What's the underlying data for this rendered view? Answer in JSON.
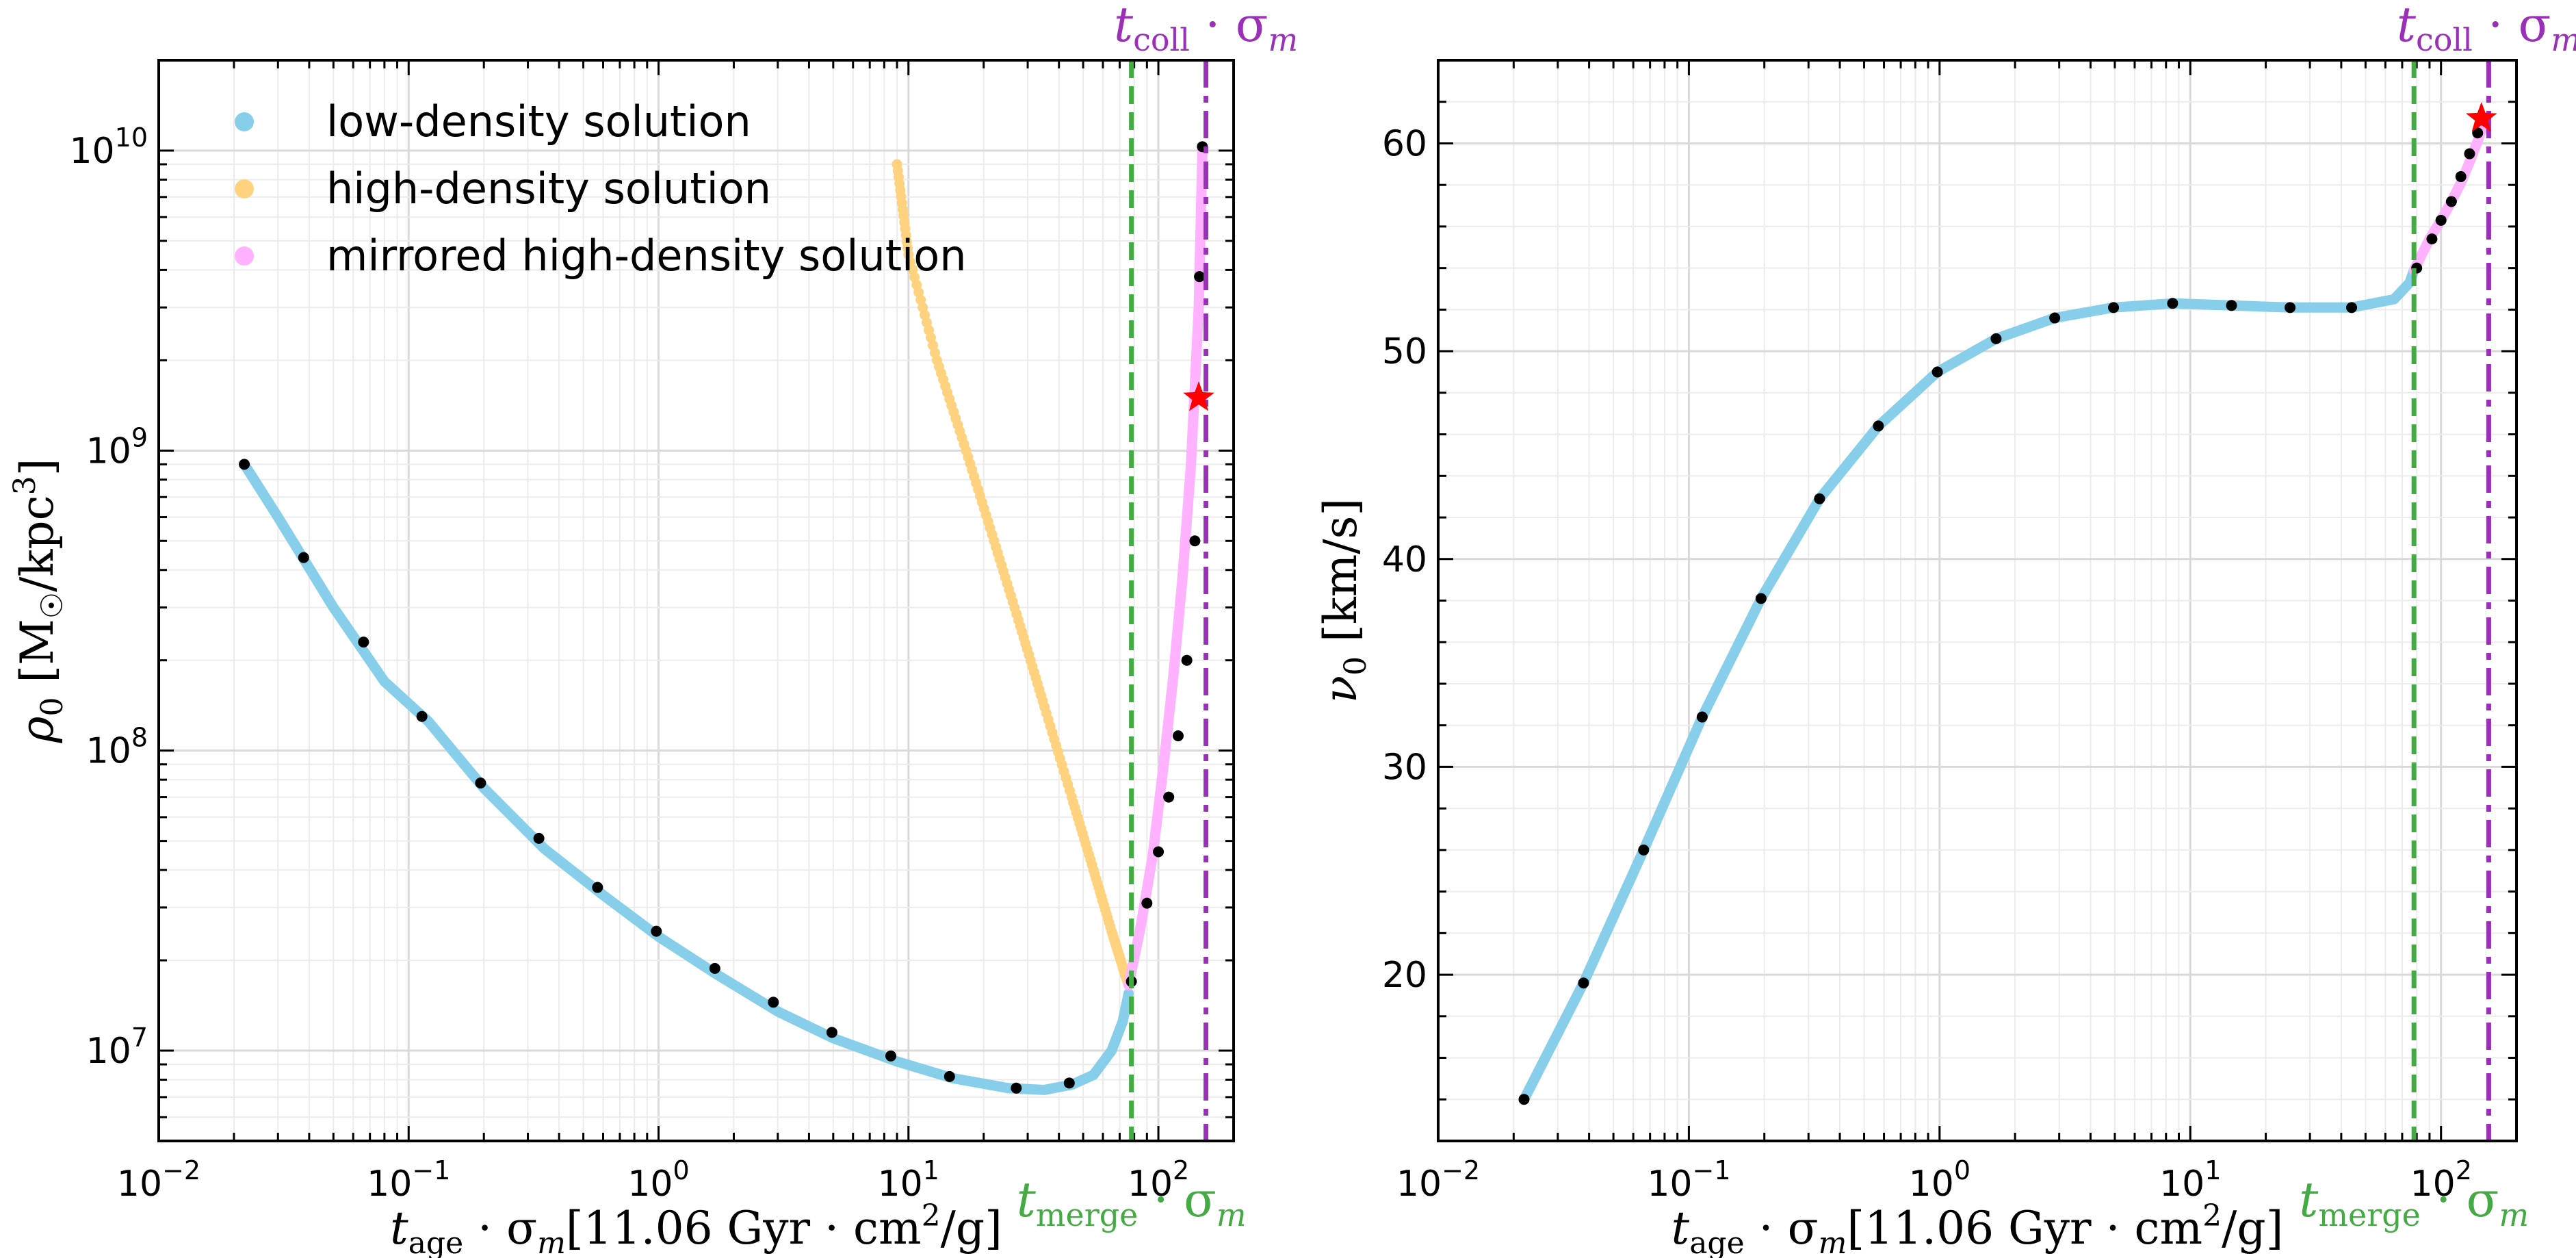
{
  "colors": {
    "low": "#87ceeb",
    "high": "#ffd27f",
    "mirrored": "#ffb2ff",
    "merge": "#44aa44",
    "coll": "#9a2fb8",
    "star": "#ff0000",
    "marker": "#000000"
  },
  "chart_data": [
    {
      "type": "line",
      "yscale": "log",
      "xscale": "log",
      "xlabel": "t_age · σ_m [11.06 Gyr · cm²/g]",
      "ylabel": "ρ₀ [M☉/kpc³]",
      "xlim": [
        0.01,
        200
      ],
      "ylim": [
        5000000,
        20000000000
      ],
      "xticks": [
        0.01,
        0.1,
        1,
        10,
        100
      ],
      "xtick_labels": [
        {
          "b": "10",
          "e": "−2"
        },
        {
          "b": "10",
          "e": "−1"
        },
        {
          "b": "10",
          "e": "0"
        },
        {
          "b": "10",
          "e": "1"
        },
        {
          "b": "10",
          "e": "2"
        }
      ],
      "yticks": [
        10000000,
        100000000,
        1000000000,
        10000000000
      ],
      "ytick_labels": [
        {
          "b": "10",
          "e": "7"
        },
        {
          "b": "10",
          "e": "8"
        },
        {
          "b": "10",
          "e": "9"
        },
        {
          "b": "10",
          "e": "10"
        }
      ],
      "legend": {
        "placement": "top-left",
        "entries": [
          {
            "key": "low",
            "label": "low-density solution"
          },
          {
            "key": "high",
            "label": "high-density solution"
          },
          {
            "key": "mirrored",
            "label": "mirrored high-density solution"
          }
        ]
      },
      "series": [
        {
          "name": "low-density solution",
          "key": "low",
          "x": [
            0.022,
            0.03,
            0.05,
            0.08,
            0.12,
            0.2,
            0.35,
            0.6,
            1.0,
            1.7,
            3.0,
            5.0,
            9.0,
            15,
            25,
            35,
            45,
            55,
            65,
            72,
            76
          ],
          "y": [
            900000000,
            600000000,
            300000000,
            170000000,
            125000000,
            75000000,
            47000000,
            33000000,
            24000000,
            18000000,
            13500000,
            11000000,
            9200000,
            8100000,
            7500000,
            7400000,
            7700000,
            8300000,
            10000000,
            12500000,
            15500000
          ]
        },
        {
          "name": "high-density solution",
          "key": "high",
          "x": [
            9,
            10,
            13,
            17,
            22,
            28,
            35,
            45,
            55,
            65,
            72,
            76
          ],
          "y": [
            9000000000,
            4500000000,
            2000000000,
            1000000000,
            500000000,
            260000000,
            140000000,
            70000000,
            40000000,
            25000000,
            19000000,
            16500000
          ]
        },
        {
          "name": "mirrored high-density solution",
          "key": "mirrored",
          "x": [
            76,
            85,
            95,
            105,
            115,
            125,
            135,
            145,
            150
          ],
          "y": [
            16500000,
            26000000,
            45000000,
            90000000,
            180000000,
            380000000,
            900000000,
            3000000000,
            10000000000
          ]
        }
      ],
      "markers": {
        "x": [
          0.022,
          0.038,
          0.066,
          0.113,
          0.194,
          0.332,
          0.57,
          0.98,
          1.68,
          2.88,
          4.94,
          8.5,
          14.6,
          27,
          44,
          78,
          90,
          100,
          110,
          120,
          130,
          140,
          146,
          150
        ],
        "y": [
          900000000,
          440000000,
          230000000,
          130000000,
          78000000,
          51000000,
          35000000,
          25000000,
          18800000,
          14500000,
          11500000,
          9600000,
          8200000,
          7500000,
          7800000,
          17000000,
          31000000,
          46000000,
          70000000,
          112000000,
          200000000,
          500000000,
          3800000000,
          10300000000
        ]
      },
      "star": {
        "x": 145,
        "y": 1500000000
      },
      "vlines": [
        {
          "x": 78,
          "style": "dashed",
          "key": "merge",
          "label": {
            "base": "t",
            "sub": "merge",
            "rest": " · σ",
            "sub2": "m"
          }
        },
        {
          "x": 155,
          "style": "dashdot",
          "key": "coll",
          "label": {
            "base": "t",
            "sub": "coll",
            "rest": " · σ",
            "sub2": "m"
          }
        }
      ]
    },
    {
      "type": "line",
      "xscale": "log",
      "yscale": "linear",
      "xlabel": "t_age · σ_m [11.06 Gyr · cm²/g]",
      "ylabel": "ν₀ [km/s]",
      "xlim": [
        0.01,
        200
      ],
      "ylim": [
        12,
        64
      ],
      "xticks": [
        0.01,
        0.1,
        1,
        10,
        100
      ],
      "xtick_labels": [
        {
          "b": "10",
          "e": "−2"
        },
        {
          "b": "10",
          "e": "−1"
        },
        {
          "b": "10",
          "e": "0"
        },
        {
          "b": "10",
          "e": "1"
        },
        {
          "b": "10",
          "e": "2"
        }
      ],
      "yticks": [
        20,
        30,
        40,
        50,
        60
      ],
      "ytick_labels": [
        "20",
        "30",
        "40",
        "50",
        "60"
      ],
      "series": [
        {
          "name": "low-density solution",
          "key": "low",
          "x": [
            0.022,
            0.038,
            0.066,
            0.113,
            0.194,
            0.332,
            0.57,
            0.98,
            1.68,
            2.88,
            4.94,
            8.5,
            14.6,
            25,
            44,
            65,
            75,
            78
          ],
          "y": [
            14,
            19.6,
            26,
            32.4,
            38.1,
            42.9,
            46.4,
            49,
            50.6,
            51.6,
            52.1,
            52.3,
            52.2,
            52.1,
            52.1,
            52.5,
            53.3,
            53.9
          ]
        },
        {
          "name": "mirrored high-density solution",
          "key": "mirrored",
          "x": [
            78,
            90,
            100,
            110,
            120,
            130,
            140,
            150
          ],
          "y": [
            53.9,
            55.4,
            56.3,
            57.2,
            58.1,
            59.1,
            60.1,
            61.2
          ]
        }
      ],
      "markers": {
        "x": [
          0.022,
          0.038,
          0.066,
          0.113,
          0.194,
          0.332,
          0.57,
          0.98,
          1.68,
          2.88,
          4.94,
          8.5,
          14.6,
          25,
          44,
          80,
          92,
          100,
          110,
          120,
          130,
          140
        ],
        "y": [
          14,
          19.6,
          26,
          32.4,
          38.1,
          42.9,
          46.4,
          49,
          50.6,
          51.6,
          52.1,
          52.3,
          52.2,
          52.1,
          52.1,
          54,
          55.4,
          56.3,
          57.2,
          58.4,
          59.5,
          60.5
        ]
      },
      "star": {
        "x": 145,
        "y": 61.2
      },
      "vlines": [
        {
          "x": 78,
          "style": "dashed",
          "key": "merge",
          "label": {
            "base": "t",
            "sub": "merge",
            "rest": " · σ",
            "sub2": "m"
          }
        },
        {
          "x": 155,
          "style": "dashdot",
          "key": "coll",
          "label": {
            "base": "t",
            "sub": "coll",
            "rest": " · σ",
            "sub2": "m"
          }
        }
      ]
    }
  ]
}
